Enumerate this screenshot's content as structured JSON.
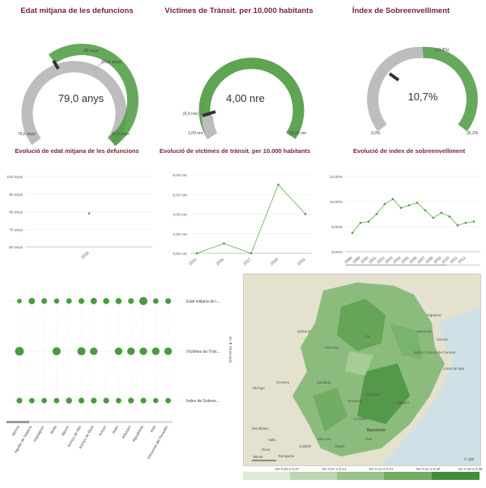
{
  "gauges": [
    {
      "title": "Edat mitjana de les defuncions",
      "value": "79,0 anys",
      "min": "76,6 anys",
      "max": "82,6 anys",
      "mark_top": "80 anys",
      "mark_side": "(80,6 anys)",
      "fraction": 0.4
    },
    {
      "title": "Víctimes de Trànsit. per 10.000 habitants",
      "value": "4,00 nre",
      "min": "1,00 nre",
      "max": "56,00 nre",
      "mark_side": "(6,0 nre)",
      "fraction": 0.05
    },
    {
      "title": "Índex de Sobreenvelliment",
      "value": "10,7%",
      "min": "0,0%",
      "max": "35,2%",
      "mark_top": "(13,9%)",
      "fraction": 0.3
    }
  ],
  "charts": [
    {
      "title": "Evolució de edat mitjana de les defuncions",
      "y_ticks": [
        "100 anys",
        "90 anys",
        "80 anys",
        "70 anys",
        "60 anys"
      ],
      "x_ticks": [
        "2018"
      ]
    },
    {
      "title": "Evolució de víctimes de trànsit. per 10.000 habitants",
      "y_ticks": [
        "8,00 nre",
        "6,00 nre",
        "4,00 nre",
        "2,00 nre",
        "0,00 nre"
      ],
      "x_ticks": [
        "2015",
        "2016",
        "2017",
        "2018",
        "2019"
      ]
    },
    {
      "title": "Evolució de index de sobreenvelliment",
      "y_ticks": [
        "12,00%",
        "10,00%",
        "8,00%",
        "6,00%"
      ],
      "x_ticks": [
        "1998",
        "1999",
        "2000",
        "2001",
        "2002",
        "2003",
        "2004",
        "2005",
        "2006",
        "2007",
        "2008",
        "2009",
        "2010",
        "2011",
        "2012"
      ]
    }
  ],
  "chart_data": [
    {
      "type": "line",
      "title": "Evolució de edat mitjana de les defuncions",
      "x": [
        "2018"
      ],
      "series": [
        {
          "values": [
            79.0
          ]
        }
      ],
      "ylim": [
        60,
        100
      ]
    },
    {
      "type": "line",
      "title": "Evolució de víctimes de trànsit. per 10.000 habitants",
      "x": [
        "2015",
        "2016",
        "2017",
        "2018",
        "2019"
      ],
      "series": [
        {
          "values": [
            0,
            1,
            0,
            7,
            4
          ]
        }
      ],
      "ylim": [
        0,
        8
      ]
    },
    {
      "type": "line",
      "title": "Evolució de index de sobreenvelliment",
      "x": [
        "1998",
        "1999",
        "2000",
        "2001",
        "2002",
        "2003",
        "2004",
        "2005",
        "2006",
        "2007",
        "2008",
        "2009",
        "2010",
        "2011",
        "2012",
        "2013"
      ],
      "series": [
        {
          "values": [
            7.5,
            8.3,
            8.4,
            9.0,
            9.8,
            10.2,
            9.5,
            9.7,
            9.9,
            9.3,
            8.7,
            9.1,
            8.8,
            8.1,
            8.3,
            8.4
          ]
        }
      ],
      "ylim": [
        6,
        12
      ]
    }
  ],
  "dotplot": {
    "rows": [
      "Edat mitjana de l...",
      "Víctimes de Trán...",
      "Índex de Sobree..."
    ],
    "columns": [
      "Abrera",
      "Aguilar de Segarra",
      "Argelaguer",
      "Alella",
      "Alpens",
      "Arenys de Mar",
      "Arenys de Munt",
      "Avinyó",
      "Artés",
      "Arbúcies",
      "Aiguafreda",
      "Avià",
      "Avinyonet del Penedès"
    ],
    "axis_label": "ID ▼ Municipis",
    "sizes": [
      [
        0.3,
        0.6,
        0.5,
        0.4,
        0.45,
        0.5,
        0.6,
        0.55,
        0.55,
        0.5,
        0.9,
        0.45,
        0.5
      ],
      [
        1.0,
        0,
        0,
        0.9,
        0,
        0.9,
        0.8,
        0,
        0.8,
        0.8,
        0.8,
        0.8,
        0.8
      ],
      [
        0.5,
        0.45,
        0.45,
        0.45,
        0.55,
        0.5,
        0.5,
        0.5,
        0.45,
        0.5,
        0.5,
        0.4,
        0.45
      ]
    ]
  },
  "map": {
    "labels": [
      "Figueres",
      "Banyoles",
      "Girona",
      "Lloret de Mar",
      "Santa Coloma de Farners",
      "Vic",
      "Manresa",
      "Igualada",
      "Tàrrega",
      "Cervera",
      "Solsona",
      "Mataró",
      "Barcelona",
      "Sabadell",
      "Terrassa",
      "Vilanova",
      "Sitges",
      "Montblanc",
      "Valls",
      "Tarragona",
      "Reus",
      "Cornellà",
      "Prat",
      "Calafell"
    ],
    "attribution": "© Qlik",
    "scale": "50 mi"
  },
  "legend": [
    {
      "label": "De 0,00 a 0,07",
      "color": "#dfe9d7"
    },
    {
      "label": "De 0,07 a 0,14",
      "color": "#bcd6b0"
    },
    {
      "label": "De 0,14 a 0,21",
      "color": "#97c289"
    },
    {
      "label": "De 0,21 a 0,28",
      "color": "#6fac62"
    },
    {
      "label": "De 0,28 a 0,35",
      "color": "#3f8f3c"
    }
  ],
  "colors": {
    "title": "#7a2431",
    "green": "#4a9a3f",
    "grey": "#b9b9b9",
    "grid": "#e6e6e6"
  }
}
